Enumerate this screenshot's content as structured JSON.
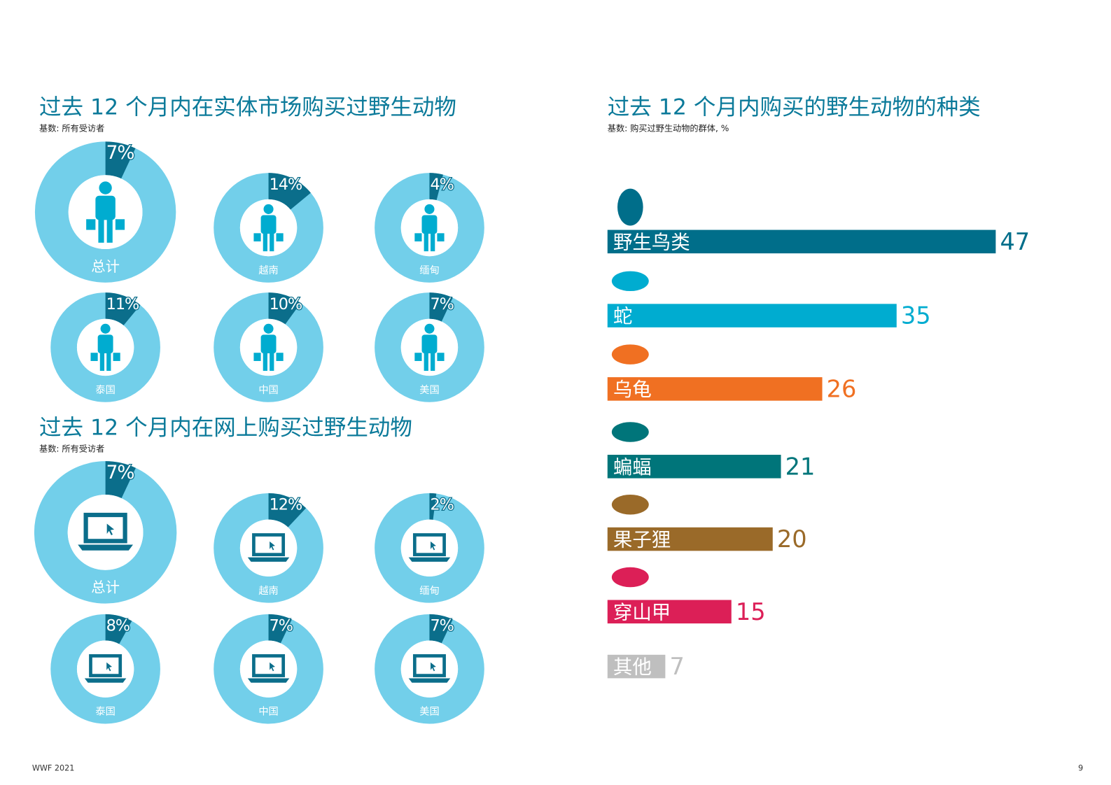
{
  "chart_data": [
    {
      "type": "donut",
      "title": "过去 12 个月内在实体市场购买过野生动物",
      "subtitle": "基数: 所有受访者",
      "categories": [
        "总计",
        "越南",
        "缅甸",
        "泰国",
        "中国",
        "美国"
      ],
      "values": [
        7,
        14,
        4,
        11,
        10,
        7
      ],
      "value_labels": [
        "7%",
        "14%",
        "4%",
        "11%",
        "10%",
        "7%"
      ],
      "color": "#0b6e8b",
      "track_color": "#72cfea"
    },
    {
      "type": "donut",
      "title": "过去 12 个月内在网上购买过野生动物",
      "subtitle": "基数: 所有受访者",
      "categories": [
        "总计",
        "越南",
        "缅甸",
        "泰国",
        "中国",
        "美国"
      ],
      "values": [
        7,
        12,
        2,
        8,
        7,
        7
      ],
      "value_labels": [
        "7%",
        "12%",
        "2%",
        "8%",
        "7%",
        "7%"
      ],
      "color": "#0b6e8b",
      "track_color": "#72cfea"
    },
    {
      "type": "bar",
      "title": "过去 12 个月内购买的野生动物的种类",
      "subtitle": "基数: 购买过野生动物的群体, %",
      "categories": [
        "野生鸟类",
        "蛇",
        "乌龟",
        "蝙蝠",
        "果子狸",
        "穿山甲",
        "其他"
      ],
      "values": [
        47,
        35,
        26,
        21,
        20,
        15,
        7
      ],
      "colors": [
        "#006e8a",
        "#00acd0",
        "#f07022",
        "#00757a",
        "#9a6a29",
        "#dc1f57",
        "#bfbfbf"
      ]
    }
  ],
  "footer": {
    "left": "WWF 2021",
    "page": "9"
  }
}
